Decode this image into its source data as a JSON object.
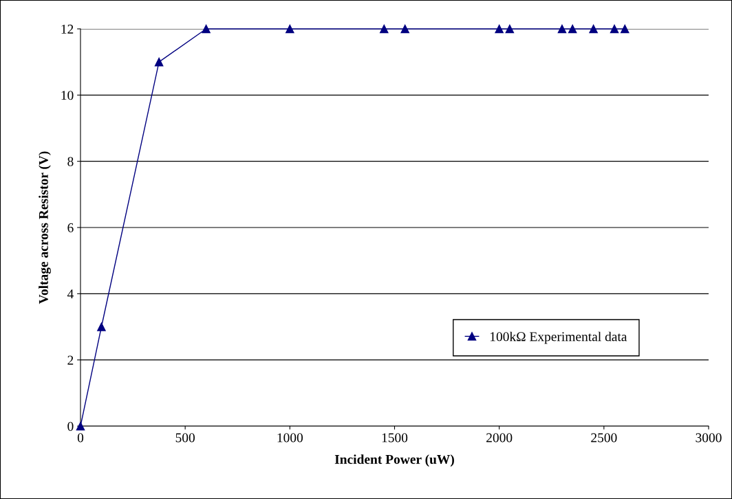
{
  "chart_data": {
    "type": "line",
    "xlabel": "Incident Power (uW)",
    "ylabel": "Voltage across Resistor (V)",
    "x": [
      0,
      100,
      375,
      600,
      1000,
      1450,
      1550,
      2000,
      2050,
      2300,
      2350,
      2450,
      2550,
      2600
    ],
    "series": [
      {
        "name": "100kΩ Experimental data",
        "color": "#000080",
        "values": [
          0,
          3,
          11,
          12,
          12,
          12,
          12,
          12,
          12,
          12,
          12,
          12,
          12,
          12
        ]
      }
    ],
    "xlim": [
      0,
      3000
    ],
    "xticks": [
      0,
      500,
      1000,
      1500,
      2000,
      2500,
      3000
    ],
    "ylim": [
      0,
      12
    ],
    "yticks": [
      0,
      2,
      4,
      6,
      8,
      10,
      12
    ],
    "grid": "y",
    "legend": "lower right",
    "marker": "triangle",
    "line_style": "solid"
  }
}
